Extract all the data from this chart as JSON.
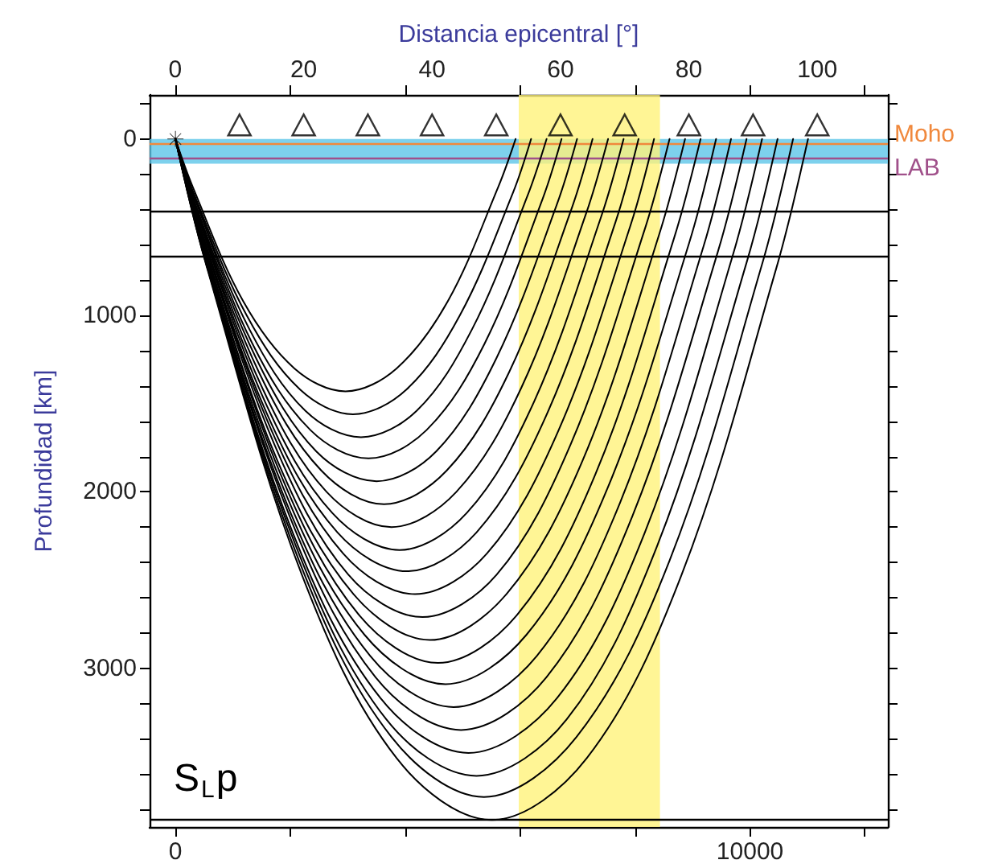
{
  "chart_data": {
    "type": "line",
    "x2label": "Distancia epicentral [°]",
    "ylabel": "Profundidad [km]",
    "xlim": [
      -450,
      12400
    ],
    "xticks": [
      0,
      {
        "value": 2000,
        "label": null
      },
      {
        "value": 4000,
        "label": null
      },
      {
        "value": 6000,
        "label": null
      },
      {
        "value": 8000,
        "label": null
      },
      10000,
      {
        "value": 12000,
        "label": null
      }
    ],
    "x2lim": [
      -4,
      111
    ],
    "x2ticks": [
      0,
      20,
      40,
      60,
      80,
      100
    ],
    "ylim": [
      3900,
      -250
    ],
    "yticks": [
      {
        "value": -200,
        "label": null
      },
      0,
      {
        "value": 200,
        "label": null
      },
      {
        "value": 400,
        "label": null
      },
      {
        "value": 600,
        "label": null
      },
      {
        "value": 800,
        "label": null
      },
      1000,
      {
        "value": 1200,
        "label": null
      },
      {
        "value": 1400,
        "label": null
      },
      {
        "value": 1600,
        "label": null
      },
      {
        "value": 1800,
        "label": null
      },
      2000,
      {
        "value": 2200,
        "label": null
      },
      {
        "value": 2400,
        "label": null
      },
      {
        "value": 2600,
        "label": null
      },
      {
        "value": 2800,
        "label": null
      },
      3000,
      {
        "value": 3200,
        "label": null
      },
      {
        "value": 3400,
        "label": null
      },
      {
        "value": 3600,
        "label": null
      },
      {
        "value": 3800,
        "label": null
      }
    ],
    "line_style": "solid",
    "series": [
      {
        "color": "#000000",
        "marker": "none",
        "x": [
          0,
          300,
          1180,
          2070,
          2960,
          3850,
          4740,
          5620,
          5920
        ],
        "values": [
          0,
          270,
          920,
          1300,
          1430,
          1300,
          920,
          270,
          0
        ]
      },
      {
        "color": "#000000",
        "marker": "none",
        "x": [
          0,
          310,
          1240,
          2170,
          3090,
          4020,
          4950,
          5880,
          6190
        ],
        "values": [
          0,
          300,
          1000,
          1420,
          1560,
          1420,
          1000,
          300,
          0
        ]
      },
      {
        "color": "#000000",
        "marker": "none",
        "x": [
          0,
          320,
          1290,
          2260,
          3230,
          4200,
          5160,
          6130,
          6460
        ],
        "values": [
          0,
          320,
          1080,
          1540,
          1690,
          1540,
          1080,
          320,
          0
        ]
      },
      {
        "color": "#000000",
        "marker": "none",
        "x": [
          0,
          340,
          1340,
          2350,
          3360,
          4370,
          5380,
          6390,
          6720
        ],
        "values": [
          0,
          340,
          1160,
          1650,
          1810,
          1650,
          1160,
          340,
          0
        ]
      },
      {
        "color": "#000000",
        "marker": "none",
        "x": [
          0,
          350,
          1400,
          2450,
          3500,
          4540,
          5590,
          6640,
          6990
        ],
        "values": [
          0,
          370,
          1240,
          1770,
          1940,
          1770,
          1240,
          370,
          0
        ]
      },
      {
        "color": "#000000",
        "marker": "none",
        "x": [
          0,
          360,
          1450,
          2540,
          3630,
          4720,
          5810,
          6900,
          7260
        ],
        "values": [
          0,
          390,
          1320,
          1880,
          2070,
          1880,
          1320,
          390,
          0
        ]
      },
      {
        "color": "#000000",
        "marker": "none",
        "x": [
          0,
          380,
          1510,
          2630,
          3760,
          4890,
          6020,
          7150,
          7530
        ],
        "values": [
          0,
          420,
          1410,
          2000,
          2200,
          2000,
          1410,
          420,
          0
        ]
      },
      {
        "color": "#000000",
        "marker": "none",
        "x": [
          0,
          390,
          1560,
          2730,
          3900,
          5070,
          6240,
          7410,
          7800
        ],
        "values": [
          0,
          440,
          1490,
          2120,
          2330,
          2120,
          1490,
          440,
          0
        ]
      },
      {
        "color": "#000000",
        "marker": "none",
        "x": [
          0,
          400,
          1610,
          2820,
          4030,
          5240,
          6450,
          7660,
          8060
        ],
        "values": [
          0,
          470,
          1570,
          2230,
          2450,
          2230,
          1570,
          470,
          0
        ]
      },
      {
        "color": "#000000",
        "marker": "none",
        "x": [
          0,
          420,
          1670,
          2920,
          4170,
          5420,
          6670,
          7920,
          8330
        ],
        "values": [
          0,
          490,
          1650,
          2350,
          2580,
          2350,
          1650,
          490,
          0
        ]
      },
      {
        "color": "#000000",
        "marker": "none",
        "x": [
          0,
          430,
          1720,
          3010,
          4300,
          5590,
          6880,
          8170,
          8600
        ],
        "values": [
          0,
          510,
          1730,
          2470,
          2710,
          2470,
          1730,
          510,
          0
        ]
      },
      {
        "color": "#000000",
        "marker": "none",
        "x": [
          0,
          440,
          1770,
          3100,
          4430,
          5760,
          7090,
          8420,
          8870
        ],
        "values": [
          0,
          540,
          1820,
          2580,
          2840,
          2580,
          1820,
          540,
          0
        ]
      },
      {
        "color": "#000000",
        "marker": "none",
        "x": [
          0,
          460,
          1830,
          3200,
          4570,
          5940,
          7310,
          8680,
          9140
        ],
        "values": [
          0,
          560,
          1900,
          2700,
          2970,
          2700,
          1900,
          560,
          0
        ]
      },
      {
        "color": "#000000",
        "marker": "none",
        "x": [
          0,
          470,
          1880,
          3290,
          4700,
          6110,
          7520,
          8940,
          9410
        ],
        "values": [
          0,
          590,
          1980,
          2810,
          3090,
          2810,
          1980,
          590,
          0
        ]
      },
      {
        "color": "#000000",
        "marker": "none",
        "x": [
          0,
          480,
          1930,
          3390,
          4840,
          6290,
          7740,
          9190,
          9670
        ],
        "values": [
          0,
          610,
          2060,
          2930,
          3220,
          2930,
          2060,
          610,
          0
        ]
      },
      {
        "color": "#000000",
        "marker": "none",
        "x": [
          0,
          500,
          1990,
          3480,
          4970,
          6460,
          7950,
          9440,
          9940
        ],
        "values": [
          0,
          640,
          2140,
          3050,
          3350,
          3050,
          2140,
          640,
          0
        ]
      },
      {
        "color": "#000000",
        "marker": "none",
        "x": [
          0,
          510,
          2040,
          3570,
          5100,
          6640,
          8170,
          9700,
          10210
        ],
        "values": [
          0,
          660,
          2230,
          3170,
          3480,
          3170,
          2230,
          660,
          0
        ]
      },
      {
        "color": "#000000",
        "marker": "none",
        "x": [
          0,
          520,
          2100,
          3670,
          5240,
          6810,
          8380,
          9950,
          10480
        ],
        "values": [
          0,
          690,
          2310,
          3290,
          3610,
          3290,
          2310,
          690,
          0
        ]
      },
      {
        "color": "#000000",
        "marker": "none",
        "x": [
          0,
          540,
          2150,
          3760,
          5370,
          6980,
          8600,
          10210,
          10750
        ],
        "values": [
          0,
          710,
          2390,
          3390,
          3730,
          3390,
          2390,
          710,
          0
        ]
      },
      {
        "color": "#000000",
        "marker": "none",
        "x": [
          0,
          550,
          2200,
          3850,
          5510,
          7160,
          8810,
          10460,
          11010
        ],
        "values": [
          0,
          730,
          2470,
          3510,
          3860,
          3510,
          2470,
          730,
          0
        ]
      },
      {
        "type": "scatter",
        "axis": "x2",
        "color": "#000000",
        "marker": "triangle",
        "x": [
          10,
          20,
          30,
          40,
          50,
          60,
          70,
          80,
          90,
          100
        ],
        "values": [
          -80,
          -80,
          -80,
          -80,
          -80,
          -80,
          -80,
          -80,
          -80,
          -80
        ]
      },
      {
        "type": "scatter",
        "color": "#000000",
        "marker": "cross",
        "x": [
          0
        ],
        "values": [
          0
        ]
      }
    ],
    "bands": [
      {
        "axis": "y",
        "from": 0,
        "to": 140,
        "color": "#5cc6e8"
      },
      {
        "axis": "x2",
        "from": 53.5,
        "to": 75.5,
        "color": "#fff27a"
      }
    ],
    "ref_lines": [
      {
        "axis": "y",
        "value": 30,
        "label": "Moho",
        "color": "#f0883c"
      },
      {
        "axis": "y",
        "value": 110,
        "label": "LAB",
        "color": "#a0508a"
      },
      {
        "axis": "y",
        "value": 410,
        "color": "#000000"
      },
      {
        "axis": "y",
        "value": 660,
        "color": "#000000"
      },
      {
        "axis": "y",
        "value": 3860,
        "color": "#000000"
      }
    ],
    "annotations": [
      "S$_{L}$p"
    ]
  }
}
